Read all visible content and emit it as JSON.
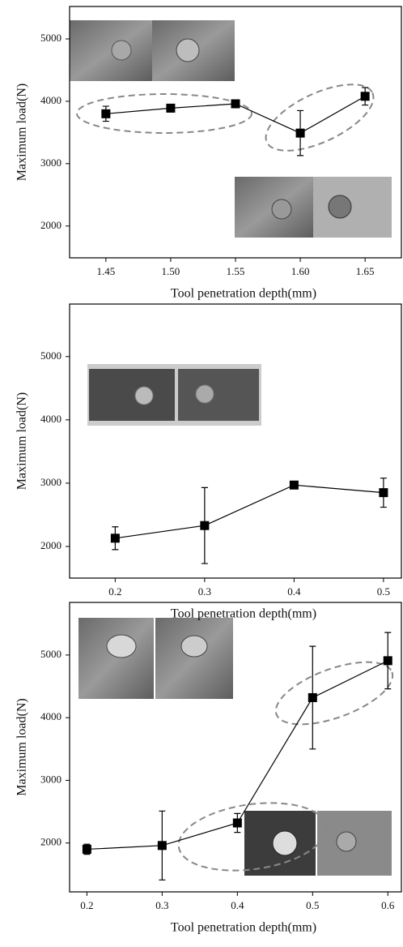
{
  "chart_data": [
    {
      "type": "line",
      "x_label": "Tool penetration depth(mm)",
      "y_label": "Maximum load(N)",
      "x": [
        1.45,
        1.5,
        1.55,
        1.6,
        1.65
      ],
      "values": [
        3800,
        3890,
        3960,
        3490,
        4080
      ],
      "errors": [
        120,
        60,
        60,
        360,
        140
      ],
      "color": "#000000",
      "xlim": [
        1.422,
        1.678
      ],
      "ylim": [
        1490,
        5520
      ],
      "xticks": [
        1.45,
        {
          "value": 1.5,
          "label": "1.50"
        },
        1.55,
        {
          "value": 1.6,
          "label": "1.60"
        },
        1.65
      ],
      "yticks": [
        2000,
        3000,
        4000,
        5000
      ]
    },
    {
      "type": "line",
      "x_label": "Tool penetration depth(mm)",
      "y_label": "Maximum load(N)",
      "x": [
        0.2,
        0.3,
        0.4,
        0.5
      ],
      "values": [
        2130,
        2330,
        2970,
        2850
      ],
      "errors": [
        180,
        600,
        0,
        230
      ],
      "color": "#000000",
      "xlim": [
        0.149,
        0.52
      ],
      "ylim": [
        1500,
        5830
      ],
      "xticks": [
        0.2,
        0.3,
        0.4,
        0.5
      ],
      "yticks": [
        2000,
        3000,
        4000,
        5000
      ]
    },
    {
      "type": "line",
      "x_label": "Tool penetration depth(mm)",
      "y_label": "Maximum load(N)",
      "x": [
        0.2,
        0.3,
        0.4,
        0.5,
        0.6
      ],
      "values": [
        1900,
        1960,
        2320,
        4320,
        4910
      ],
      "errors": [
        80,
        550,
        150,
        820,
        450
      ],
      "color": "#000000",
      "xlim": [
        0.177,
        0.618
      ],
      "ylim": [
        1220,
        5840
      ],
      "xticks": [
        0.2,
        0.3,
        0.4,
        0.5,
        0.6
      ],
      "yticks": [
        2000,
        3000,
        4000,
        5000
      ]
    }
  ]
}
